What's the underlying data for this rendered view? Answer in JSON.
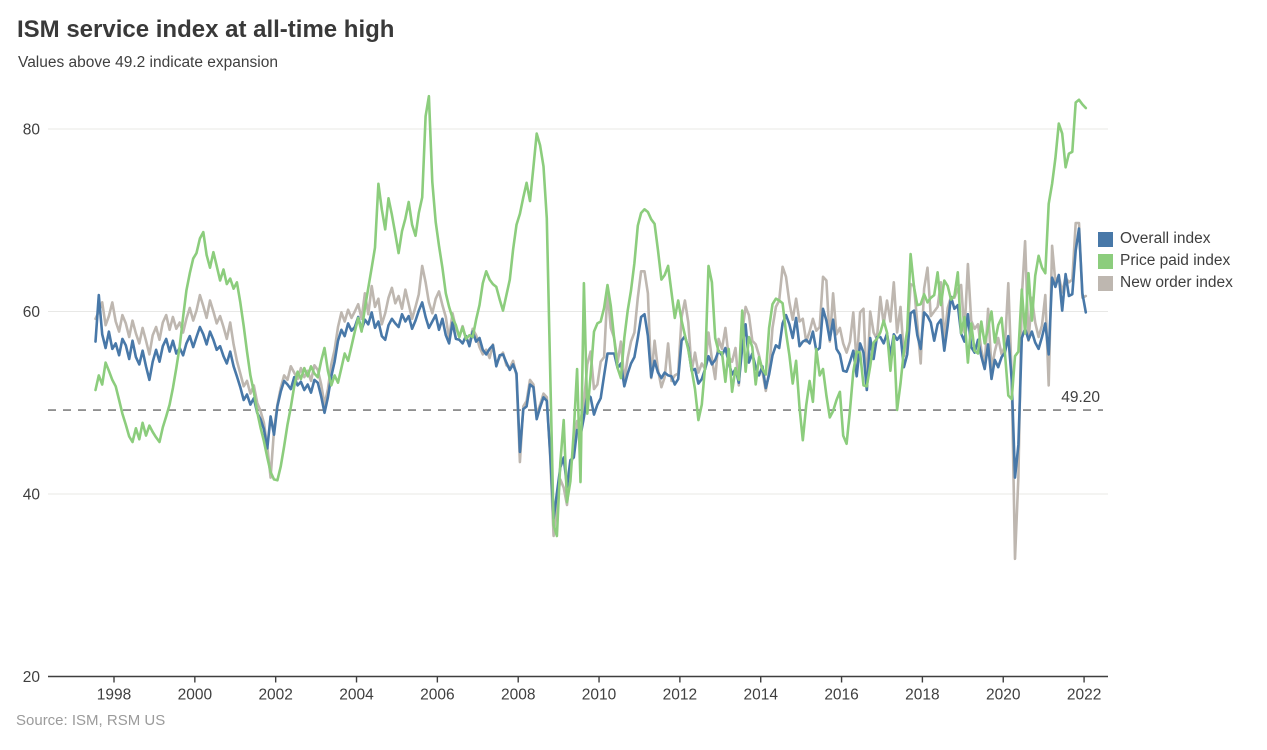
{
  "header": {
    "title": "ISM service index at all-time high",
    "subtitle": "Values above 49.2 indicate expansion"
  },
  "footer": {
    "source": "Source: ISM, RSM US"
  },
  "legend": [
    {
      "label": "Overall index",
      "color": "#4878A8"
    },
    {
      "label": "Price paid index",
      "color": "#8CCD7D"
    },
    {
      "label": "New order index",
      "color": "#BEB7B0"
    }
  ],
  "threshold": {
    "value": 49.2,
    "label": "49.20"
  },
  "colors": {
    "axis": "#3f3f3f",
    "grid": "#e8e8e6",
    "dashed": "#808080",
    "text": "#3f3f3f"
  },
  "chart_data": {
    "type": "line",
    "frequency": "monthly",
    "start": "1997-07",
    "end": "2022-01",
    "title": "ISM service index at all-time high",
    "subtitle": "Values above 49.2 indicate expansion",
    "xlabel": "",
    "ylabel": "",
    "x_ticks": [
      1998,
      2000,
      2002,
      2004,
      2006,
      2008,
      2010,
      2012,
      2014,
      2016,
      2018,
      2020,
      2022
    ],
    "y_ticks": [
      20,
      40,
      60,
      80
    ],
    "ylim": [
      20,
      84.5
    ],
    "grid": "horizontal",
    "legend_position": "right",
    "reference_line": 49.2,
    "series": [
      {
        "name": "Overall index",
        "color": "#4878A8",
        "values": [
          56.7,
          61.8,
          57.5,
          56.0,
          57.8,
          55.9,
          56.5,
          55.2,
          57.0,
          56.3,
          54.8,
          56.8,
          55.0,
          54.2,
          55.7,
          54.0,
          52.5,
          54.5,
          55.8,
          54.5,
          56.2,
          57.0,
          55.6,
          56.8,
          55.4,
          56.0,
          55.2,
          56.5,
          57.3,
          56.1,
          57.2,
          58.3,
          57.5,
          56.4,
          57.8,
          56.9,
          55.8,
          56.2,
          55.1,
          54.3,
          55.6,
          54.0,
          52.9,
          51.7,
          50.3,
          50.9,
          49.8,
          50.5,
          48.9,
          48.2,
          47.1,
          45.0,
          48.5,
          46.5,
          49.6,
          51.2,
          52.4,
          52.0,
          51.5,
          52.8,
          51.9,
          52.3,
          51.4,
          52.0,
          51.1,
          52.5,
          52.2,
          50.7,
          48.9,
          50.6,
          52.9,
          54.5,
          56.8,
          58.0,
          57.3,
          58.7,
          57.9,
          58.3,
          59.4,
          58.0,
          59.1,
          58.6,
          59.9,
          58.2,
          58.9,
          57.3,
          56.9,
          58.5,
          59.2,
          58.7,
          58.3,
          59.7,
          58.9,
          59.5,
          58.1,
          59.0,
          60.1,
          61.0,
          59.4,
          58.2,
          58.9,
          59.6,
          58.0,
          59.2,
          57.4,
          56.5,
          58.8,
          57.0,
          56.9,
          56.5,
          57.3,
          56.2,
          57.8,
          56.7,
          57.1,
          55.8,
          55.3,
          55.9,
          56.3,
          54.0,
          55.2,
          55.3,
          54.4,
          53.6,
          54.2,
          53.2,
          44.6,
          49.3,
          49.6,
          52.0,
          51.7,
          48.2,
          49.5,
          50.6,
          50.2,
          44.4,
          37.3,
          40.1,
          42.9,
          44.0,
          40.8,
          43.7,
          44.0,
          47.0,
          46.4,
          48.4,
          50.9,
          50.6,
          48.7,
          49.8,
          50.5,
          53.0,
          55.4,
          55.4,
          55.4,
          53.8,
          54.3,
          51.8,
          53.2,
          54.3,
          55.0,
          57.1,
          59.4,
          59.7,
          57.3,
          52.8,
          54.6,
          53.3,
          52.7,
          53.3,
          53.0,
          52.9,
          52.0,
          52.6,
          56.8,
          57.3,
          56.0,
          53.5,
          53.7,
          52.1,
          52.6,
          53.7,
          55.1,
          54.2,
          54.7,
          55.7,
          55.2,
          56.0,
          54.4,
          53.1,
          53.7,
          52.2,
          56.0,
          58.6,
          54.4,
          55.4,
          53.9,
          53.0,
          54.0,
          51.6,
          53.1,
          55.2,
          56.3,
          56.0,
          58.7,
          59.6,
          58.6,
          57.1,
          59.3,
          56.2,
          56.7,
          56.9,
          56.5,
          57.8,
          55.7,
          56.0,
          60.3,
          59.0,
          56.9,
          59.1,
          55.9,
          55.3,
          53.5,
          53.4,
          54.5,
          55.7,
          52.9,
          56.5,
          55.5,
          51.4,
          57.1,
          54.8,
          57.2,
          57.2,
          56.5,
          57.6,
          55.2,
          57.5,
          56.9,
          57.4,
          53.9,
          55.3,
          59.8,
          60.1,
          57.4,
          55.9,
          59.9,
          59.5,
          58.8,
          56.8,
          58.6,
          59.1,
          55.7,
          58.5,
          61.6,
          60.3,
          60.7,
          57.6,
          56.7,
          59.7,
          56.1,
          55.5,
          56.9,
          55.1,
          53.7,
          56.4,
          52.6,
          54.7,
          53.9,
          55.0,
          55.5,
          57.3,
          52.5,
          41.8,
          45.4,
          57.1,
          58.1,
          56.9,
          57.8,
          56.6,
          55.9,
          57.2,
          58.7,
          55.3,
          63.7,
          62.7,
          64.0,
          60.1,
          64.1,
          61.7,
          61.9,
          66.7,
          69.1,
          62.0,
          59.9
        ]
      },
      {
        "name": "Price paid index",
        "color": "#8CCD7D",
        "values": [
          51.4,
          53.0,
          52.0,
          54.4,
          53.5,
          52.5,
          51.8,
          50.3,
          48.8,
          47.6,
          46.3,
          45.7,
          47.2,
          46.0,
          47.8,
          46.4,
          47.5,
          46.8,
          46.2,
          45.7,
          47.3,
          48.5,
          49.8,
          51.6,
          53.8,
          56.2,
          59.4,
          62.3,
          64.2,
          65.8,
          66.4,
          68.0,
          68.7,
          66.2,
          64.8,
          66.5,
          65.0,
          63.4,
          64.6,
          63.0,
          63.6,
          62.5,
          63.2,
          61.0,
          58.4,
          55.6,
          53.0,
          51.2,
          49.0,
          47.3,
          45.8,
          44.0,
          42.4,
          41.6,
          41.5,
          43.0,
          45.2,
          47.6,
          49.5,
          51.8,
          53.4,
          52.6,
          53.8,
          52.9,
          54.0,
          53.2,
          52.8,
          54.6,
          56.0,
          53.5,
          51.9,
          53.0,
          52.2,
          53.8,
          55.4,
          54.6,
          56.2,
          57.8,
          59.3,
          57.8,
          60.4,
          62.6,
          64.8,
          67.0,
          74.0,
          71.2,
          69.0,
          72.4,
          70.6,
          68.5,
          66.4,
          68.8,
          70.2,
          72.0,
          69.5,
          68.3,
          70.8,
          72.5,
          81.4,
          83.6,
          74.2,
          69.8,
          67.2,
          64.8,
          62.0,
          60.5,
          59.3,
          58.5,
          57.2,
          58.3,
          57.0,
          57.4,
          57.2,
          59.1,
          60.7,
          63.1,
          64.4,
          63.5,
          63.0,
          62.7,
          61.3,
          60.1,
          61.8,
          63.5,
          66.8,
          69.5,
          70.7,
          72.5,
          74.1,
          72.1,
          75.8,
          79.5,
          78.2,
          75.9,
          70.2,
          53.4,
          36.6,
          35.4,
          43.4,
          48.1,
          39.1,
          41.4,
          46.9,
          53.7,
          41.3,
          63.1,
          48.8,
          53.0,
          57.8,
          58.7,
          58.9,
          60.4,
          62.9,
          60.6,
          57.0,
          53.8,
          52.7,
          57.1,
          60.1,
          62.3,
          65.3,
          69.4,
          70.8,
          71.2,
          70.9,
          70.1,
          69.6,
          66.7,
          63.5,
          64.0,
          65.0,
          62.1,
          59.3,
          61.2,
          59.0,
          57.4,
          55.8,
          53.6,
          51.5,
          48.1,
          49.8,
          54.0,
          65.0,
          63.2,
          57.1,
          55.6,
          55.5,
          52.3,
          55.9,
          51.2,
          53.8,
          52.5,
          60.1,
          53.4,
          57.2,
          56.1,
          52.0,
          55.0,
          53.7,
          53.1,
          58.2,
          60.8,
          61.4,
          61.2,
          60.9,
          57.7,
          55.2,
          52.1,
          54.6,
          49.5,
          45.9,
          49.7,
          52.4,
          50.1,
          55.9,
          53.0,
          53.7,
          50.8,
          48.4,
          49.1,
          50.3,
          51.2,
          46.4,
          45.5,
          49.2,
          53.4,
          55.6,
          55.5,
          51.9,
          51.8,
          54.0,
          56.6,
          57.0,
          57.7,
          59.0,
          57.7,
          53.5,
          57.3,
          49.2,
          52.1,
          55.7,
          57.9,
          66.3,
          62.7,
          60.7,
          60.8,
          61.9,
          61.0,
          61.5,
          61.8,
          64.3,
          60.7,
          63.4,
          62.8,
          61.3,
          61.7,
          64.3,
          57.6,
          59.4,
          54.4,
          58.7,
          55.7,
          55.4,
          58.9,
          56.5,
          58.2,
          60.0,
          56.6,
          58.5,
          59.3,
          55.5,
          50.8,
          50.4,
          55.1,
          55.6,
          62.4,
          57.6,
          64.2,
          59.0,
          63.9,
          66.1,
          64.8,
          64.2,
          71.8,
          74.0,
          76.8,
          80.6,
          79.5,
          75.8,
          77.3,
          77.5,
          82.9,
          83.2,
          82.7,
          82.3
        ]
      },
      {
        "name": "New order index",
        "color": "#BEB7B0",
        "values": [
          59.2,
          60.0,
          61.0,
          58.5,
          59.5,
          61.0,
          58.9,
          57.8,
          59.6,
          58.7,
          57.2,
          59.0,
          57.6,
          56.5,
          58.2,
          56.8,
          55.3,
          57.4,
          58.3,
          56.9,
          58.8,
          59.6,
          58.0,
          59.4,
          58.1,
          58.8,
          57.7,
          59.2,
          60.4,
          59.0,
          60.1,
          61.8,
          60.6,
          59.3,
          61.2,
          60.0,
          58.7,
          59.5,
          58.3,
          57.0,
          58.8,
          56.4,
          54.6,
          53.2,
          51.8,
          52.4,
          51.0,
          51.9,
          50.0,
          49.1,
          47.8,
          45.2,
          41.8,
          47.0,
          49.8,
          51.6,
          53.0,
          52.5,
          54.0,
          53.3,
          52.6,
          53.8,
          52.8,
          53.5,
          52.4,
          54.1,
          53.6,
          52.0,
          49.8,
          51.5,
          54.2,
          55.8,
          58.3,
          59.9,
          58.9,
          60.2,
          59.3,
          60.0,
          60.8,
          59.2,
          62.0,
          59.7,
          62.8,
          60.5,
          61.4,
          58.6,
          59.8,
          61.5,
          62.6,
          60.9,
          61.7,
          60.3,
          62.4,
          60.8,
          59.2,
          60.5,
          61.9,
          65.0,
          63.2,
          61.0,
          59.8,
          61.4,
          62.2,
          60.7,
          59.4,
          57.0,
          59.8,
          58.2,
          57.2,
          58.4,
          57.0,
          56.5,
          58.1,
          57.4,
          56.1,
          55.3,
          55.8,
          54.9,
          56.4,
          54.2,
          55.0,
          55.5,
          54.1,
          53.8,
          54.6,
          53.0,
          43.5,
          49.6,
          50.2,
          52.5,
          52.0,
          48.6,
          49.8,
          51.0,
          50.6,
          44.1,
          35.4,
          38.9,
          41.6,
          40.7,
          38.8,
          43.0,
          44.5,
          48.0,
          48.1,
          49.9,
          54.2,
          55.6,
          51.5,
          52.0,
          54.5,
          55.0,
          62.3,
          58.2,
          57.1,
          54.4,
          56.7,
          52.4,
          54.9,
          56.7,
          57.7,
          61.5,
          64.4,
          64.4,
          62.0,
          52.7,
          56.8,
          53.6,
          51.7,
          52.8,
          56.5,
          52.4,
          53.0,
          53.2,
          59.4,
          61.2,
          58.8,
          53.5,
          55.5,
          53.3,
          54.3,
          53.7,
          57.7,
          54.8,
          52.6,
          57.0,
          55.9,
          58.2,
          55.0,
          54.5,
          56.0,
          51.9,
          57.7,
          60.5,
          59.6,
          56.8,
          56.4,
          55.2,
          53.4,
          51.3,
          53.4,
          58.2,
          60.5,
          61.2,
          64.9,
          63.8,
          61.0,
          59.1,
          61.4,
          58.9,
          59.2,
          56.7,
          57.8,
          59.2,
          57.9,
          58.3,
          63.8,
          63.4,
          56.7,
          62.0,
          57.5,
          58.2,
          56.5,
          55.5,
          56.7,
          59.9,
          54.2,
          59.9,
          60.3,
          51.4,
          60.0,
          57.7,
          57.0,
          61.6,
          58.6,
          61.2,
          58.9,
          63.2,
          57.7,
          60.5,
          55.1,
          57.1,
          63.0,
          62.8,
          58.7,
          54.3,
          62.5,
          64.8,
          59.5,
          60.0,
          60.5,
          63.2,
          57.0,
          60.4,
          61.6,
          61.5,
          62.5,
          62.9,
          57.7,
          65.2,
          59.0,
          58.1,
          58.6,
          55.8,
          54.1,
          60.3,
          53.7,
          55.6,
          57.1,
          55.3,
          56.2,
          63.1,
          52.9,
          32.9,
          41.9,
          61.6,
          67.7,
          56.8,
          61.5,
          58.8,
          57.2,
          58.5,
          61.8,
          51.9,
          67.2,
          63.2,
          63.9,
          62.1,
          63.7,
          63.2,
          63.5,
          69.7,
          69.7,
          61.5,
          61.7
        ]
      }
    ]
  }
}
